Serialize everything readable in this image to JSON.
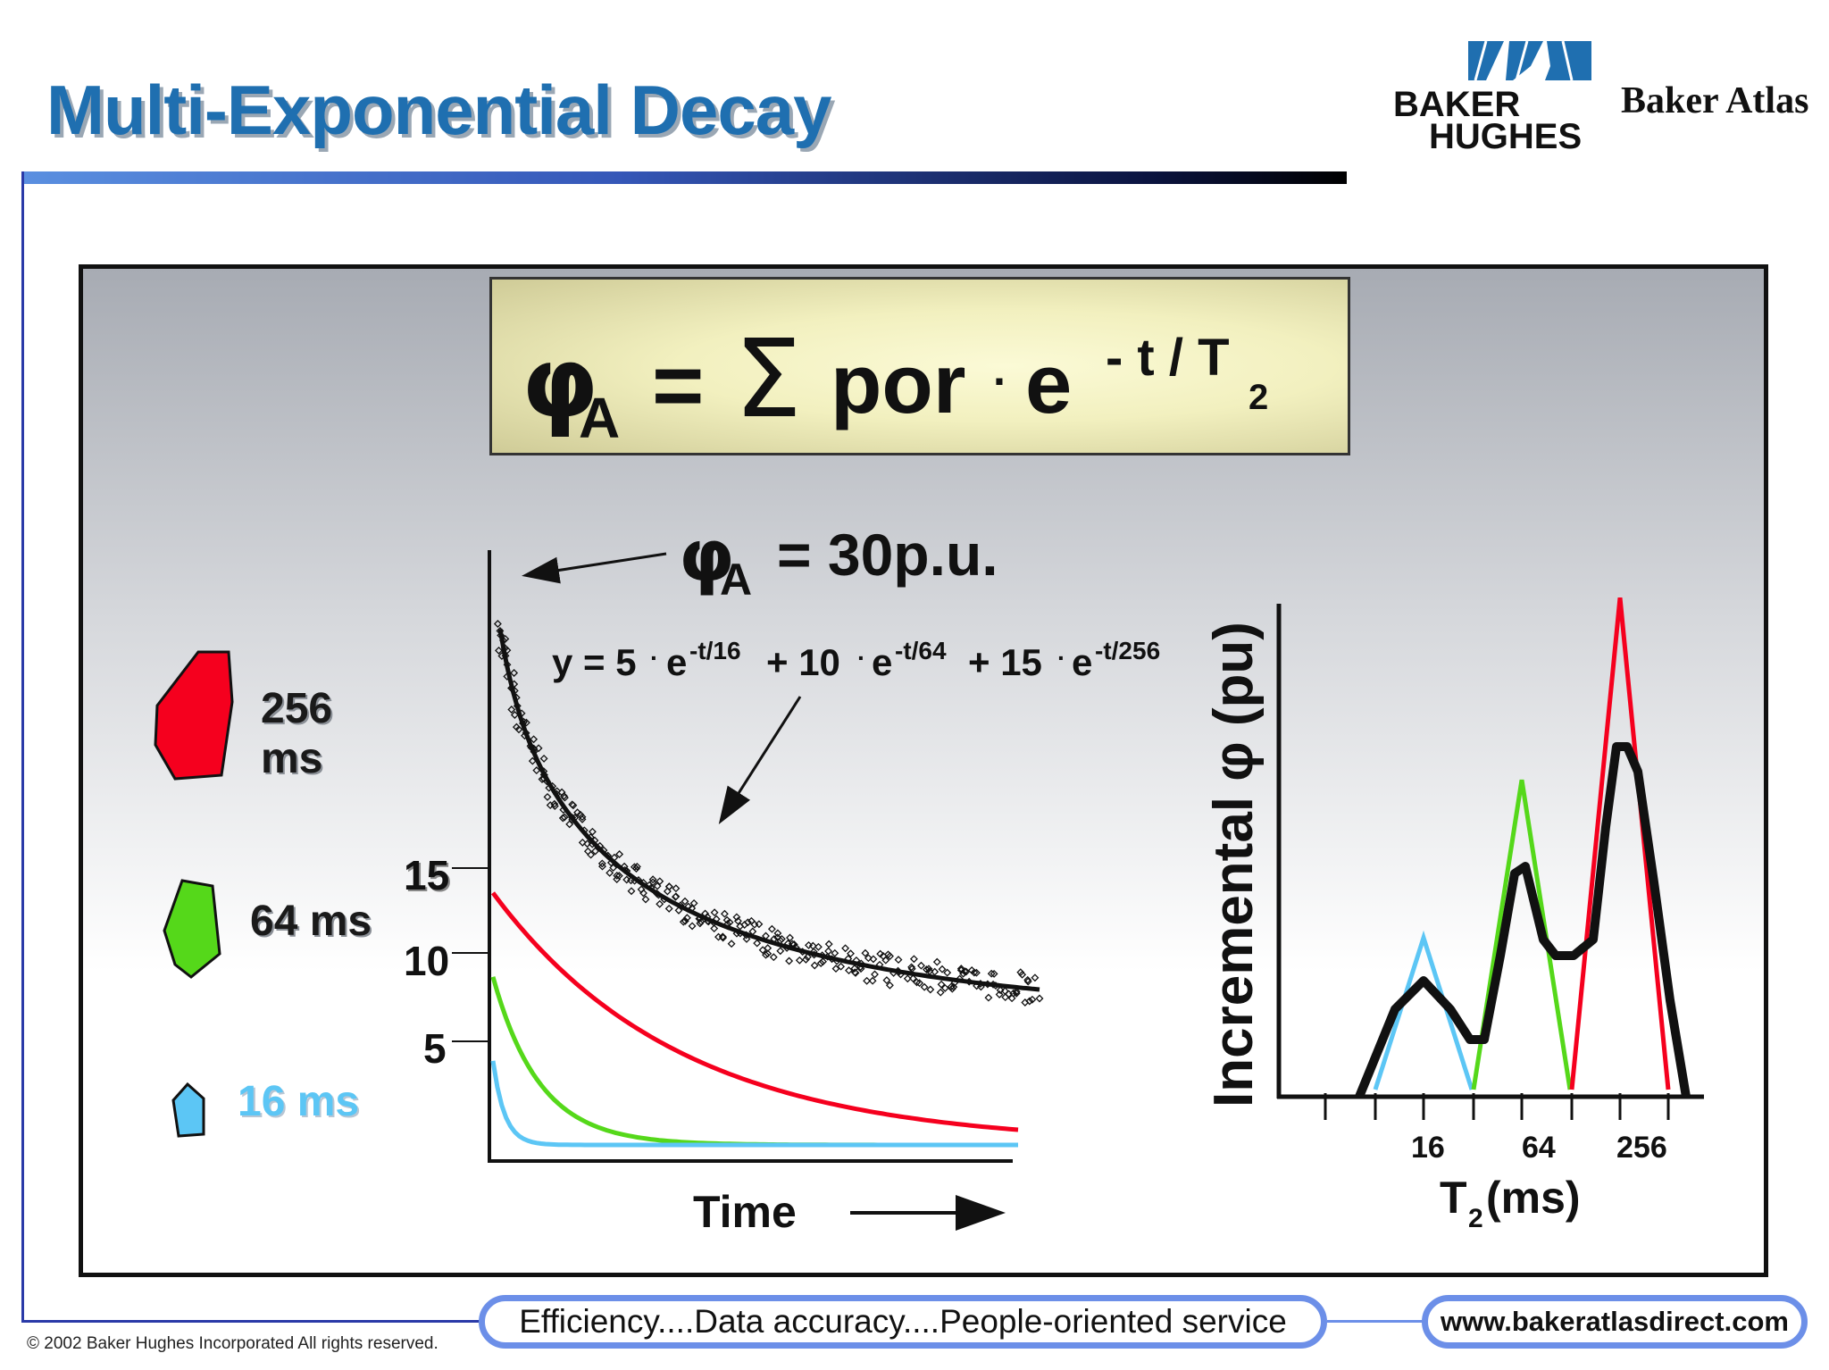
{
  "slide": {
    "title": "Multi-Exponential Decay",
    "copyright": "© 2002 Baker Hughes Incorporated All rights reserved.",
    "slogan": "Efficiency....Data accuracy....People-oriented service",
    "url": "www.bakeratlasdirect.com"
  },
  "logo": {
    "line1": "BAKER",
    "line2": "HUGHES",
    "brand": "Baker Atlas",
    "color": "#1f6fb0"
  },
  "formula": {
    "phi": "φ",
    "sub": "A",
    "eq": "=",
    "sum": "Σ",
    "por": "por",
    "dot": "·",
    "e": "e",
    "exp": "- t / T",
    "exp_sub": "2"
  },
  "annotations": {
    "phi_a_value": "= 30p.u.",
    "fit_equation": {
      "y": "y = 5",
      "e1": "e",
      "exp1": "-t/16",
      "plus1": "+ 10",
      "e2": "e",
      "exp2": "-t/64",
      "plus2": "+ 15",
      "e3": "e",
      "exp3": "-t/256"
    }
  },
  "legend": [
    {
      "label_line1": "256",
      "label_line2": "ms",
      "color": "#f5001e"
    },
    {
      "label_line1": "64 ms",
      "label_line2": "",
      "color": "#55d81a"
    },
    {
      "label_line1": "16 ms",
      "label_line2": "",
      "color": "#5cc6f5"
    }
  ],
  "chart_data": [
    {
      "type": "line",
      "title": "",
      "xlabel": "Time",
      "ylabel": "",
      "yticks": [
        5,
        10,
        15
      ],
      "series": [
        {
          "name": "256 ms",
          "color": "#f5001e",
          "amplitude": 15,
          "t2_ms": 256
        },
        {
          "name": "64 ms",
          "color": "#55d81a",
          "amplitude": 10,
          "t2_ms": 64
        },
        {
          "name": "16 ms",
          "color": "#5cc6f5",
          "amplitude": 5,
          "t2_ms": 16
        }
      ],
      "sum_curve": {
        "initial_value_pu": 30,
        "equation": "y = 5·e^-t/16 + 10·e^-t/64 + 15·e^-t/256"
      }
    },
    {
      "type": "line",
      "title": "",
      "xlabel": "T2 (ms)",
      "ylabel": "Incremental φ (pu)",
      "x_scale": "log",
      "xticks": [
        "16",
        "64",
        "256"
      ],
      "series": [
        {
          "name": "16 ms",
          "color": "#5cc6f5",
          "peak_t2_ms": 16,
          "relative_height": 0.25
        },
        {
          "name": "64 ms",
          "color": "#55d81a",
          "peak_t2_ms": 64,
          "relative_height": 0.51
        },
        {
          "name": "256 ms",
          "color": "#f5001e",
          "peak_t2_ms": 256,
          "relative_height": 0.81
        },
        {
          "name": "sum",
          "color": "#000000"
        }
      ]
    }
  ],
  "labels": {
    "time": "Time",
    "t2": "T",
    "t2_sub": "2",
    "t2_unit": " (ms)",
    "incremental": "Incremental φ (pu)",
    "xtick_16": "16",
    "xtick_64": "64",
    "xtick_256": "256",
    "ytick_15": "15",
    "ytick_10": "10",
    "ytick_5": "5"
  }
}
